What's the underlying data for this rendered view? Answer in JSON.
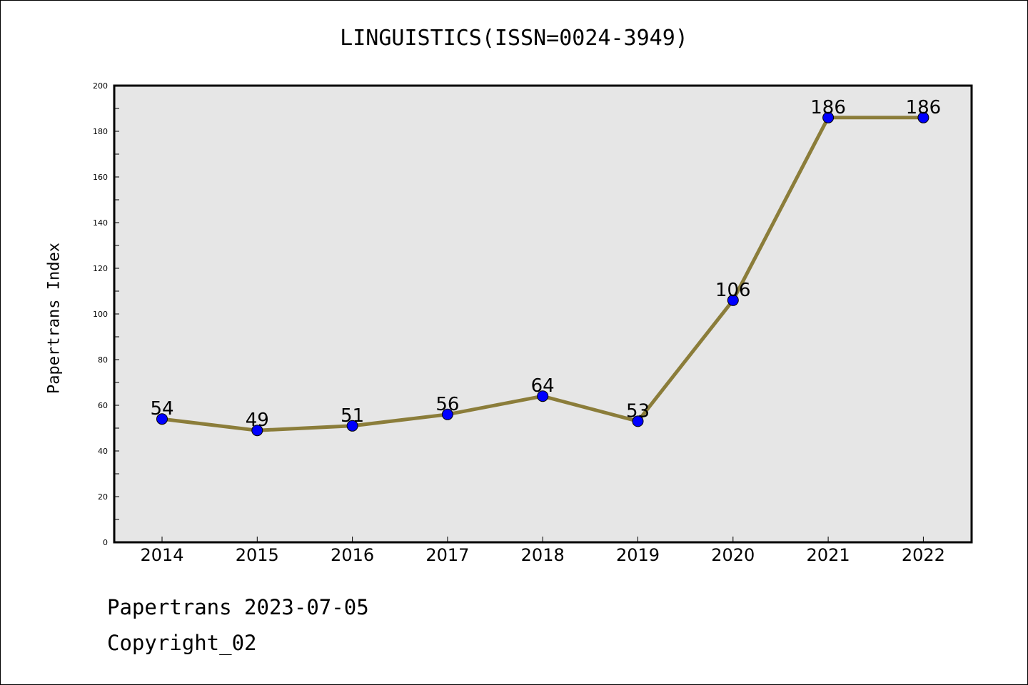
{
  "chart_data": {
    "type": "line",
    "title": "LINGUISTICS(ISSN=0024-3949)",
    "xlabel": "",
    "ylabel": "Papertrans Index",
    "categories": [
      "2014",
      "2015",
      "2016",
      "2017",
      "2018",
      "2019",
      "2020",
      "2021",
      "2022"
    ],
    "series": [
      {
        "values": [
          54,
          49,
          51,
          56,
          64,
          53,
          106,
          186,
          186
        ]
      }
    ],
    "data_labels": [
      "54",
      "49",
      "51",
      "56",
      "64",
      "53",
      "106",
      "186",
      "186"
    ],
    "ylim": [
      0,
      200
    ],
    "yticks": [
      0,
      20,
      40,
      60,
      80,
      100,
      120,
      140,
      160,
      180,
      200
    ],
    "grid": false,
    "colors": {
      "line": "#8B7D3A",
      "marker": "#0000FF",
      "plot_background": "#E6E6E6"
    }
  },
  "footer": {
    "line1": "Papertrans 2023-07-05",
    "line2": "Copyright_02"
  }
}
